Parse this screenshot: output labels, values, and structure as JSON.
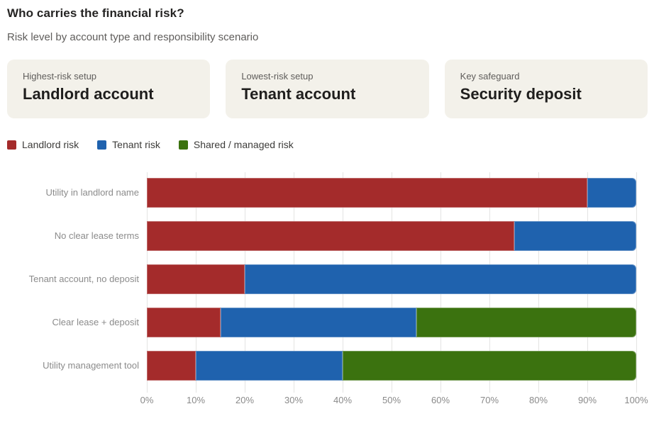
{
  "page": {
    "title": "Who carries the financial risk?",
    "subtitle": "Risk level by account type and responsibility scenario"
  },
  "cards": [
    {
      "label": "Highest-risk setup",
      "title": "Landlord account"
    },
    {
      "label": "Lowest-risk setup",
      "title": "Tenant account"
    },
    {
      "label": "Key safeguard",
      "title": "Security deposit"
    }
  ],
  "legend": [
    {
      "label": "Landlord risk",
      "color": "#a42b2b"
    },
    {
      "label": "Tenant risk",
      "color": "#1f62ae"
    },
    {
      "label": "Shared / managed risk",
      "color": "#3b720f"
    }
  ],
  "colors": {
    "card_background": "#f3f1ea",
    "gridline": "#e4e4e3",
    "axis_text": "#8a8a8a"
  },
  "chart_data": {
    "type": "bar",
    "orientation": "horizontal",
    "stacked": true,
    "title": "Who carries the financial risk?",
    "xlabel": "",
    "ylabel": "",
    "xlim": [
      0,
      100
    ],
    "x_tick_labels": [
      "0%",
      "10%",
      "20%",
      "30%",
      "40%",
      "50%",
      "60%",
      "70%",
      "80%",
      "90%",
      "100%"
    ],
    "grid": true,
    "legend_position": "top",
    "categories": [
      "Utility in landlord name",
      "No clear lease terms",
      "Tenant account, no deposit",
      "Clear lease + deposit",
      "Utility management tool"
    ],
    "series": [
      {
        "name": "Landlord risk",
        "color": "#a42b2b",
        "values": [
          90,
          75,
          20,
          15,
          10
        ]
      },
      {
        "name": "Tenant risk",
        "color": "#1f62ae",
        "values": [
          10,
          25,
          80,
          40,
          30
        ]
      },
      {
        "name": "Shared / managed risk",
        "color": "#3b720f",
        "values": [
          0,
          0,
          0,
          45,
          60
        ]
      }
    ]
  }
}
